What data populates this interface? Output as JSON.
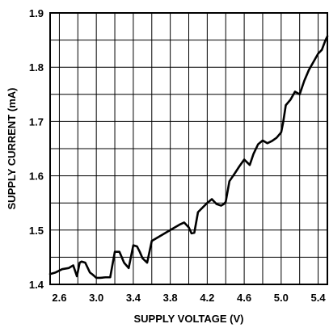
{
  "chart_data": {
    "type": "line",
    "xlabel": "SUPPLY VOLTAGE (V)",
    "ylabel": "SUPPLY CURRENT (mA)",
    "xlim": [
      2.5,
      5.5
    ],
    "ylim": [
      1.4,
      1.9
    ],
    "x_ticks": [
      2.6,
      3.0,
      3.4,
      3.8,
      4.2,
      4.6,
      5.0,
      5.4
    ],
    "x_tick_labels": [
      "2.6",
      "3.0",
      "3.4",
      "3.8",
      "4.2",
      "4.6",
      "5.0",
      "5.4"
    ],
    "y_ticks": [
      1.4,
      1.5,
      1.6,
      1.7,
      1.8,
      1.9
    ],
    "y_tick_labels": [
      "1.4",
      "1.5",
      "1.6",
      "1.7",
      "1.8",
      "1.9"
    ],
    "x_grid_step": 0.2,
    "y_grid_step": 0.05,
    "grid": true,
    "series": [
      {
        "x": [
          2.5,
          2.56,
          2.63,
          2.7,
          2.75,
          2.79,
          2.82,
          2.84,
          2.88,
          2.93,
          2.96,
          3.0,
          3.04,
          3.1,
          3.15,
          3.2,
          3.25,
          3.3,
          3.35,
          3.4,
          3.44,
          3.47,
          3.5,
          3.55,
          3.6,
          3.7,
          3.8,
          3.9,
          3.95,
          4.0,
          4.03,
          4.06,
          4.1,
          4.2,
          4.25,
          4.3,
          4.35,
          4.38,
          4.4,
          4.44,
          4.5,
          4.55,
          4.6,
          4.66,
          4.7,
          4.75,
          4.8,
          4.85,
          4.9,
          4.95,
          5.0,
          5.02,
          5.05,
          5.1,
          5.15,
          5.2,
          5.25,
          5.3,
          5.35,
          5.4,
          5.44,
          5.48,
          5.5
        ],
        "y": [
          1.419,
          1.422,
          1.428,
          1.43,
          1.435,
          1.415,
          1.44,
          1.442,
          1.44,
          1.422,
          1.418,
          1.412,
          1.412,
          1.413,
          1.413,
          1.46,
          1.46,
          1.44,
          1.43,
          1.472,
          1.47,
          1.46,
          1.448,
          1.44,
          1.48,
          1.49,
          1.5,
          1.51,
          1.514,
          1.505,
          1.494,
          1.495,
          1.533,
          1.55,
          1.557,
          1.548,
          1.545,
          1.548,
          1.552,
          1.59,
          1.605,
          1.618,
          1.63,
          1.62,
          1.64,
          1.658,
          1.665,
          1.66,
          1.664,
          1.67,
          1.68,
          1.697,
          1.73,
          1.74,
          1.755,
          1.75,
          1.775,
          1.795,
          1.81,
          1.825,
          1.832,
          1.85,
          1.857
        ]
      }
    ]
  }
}
